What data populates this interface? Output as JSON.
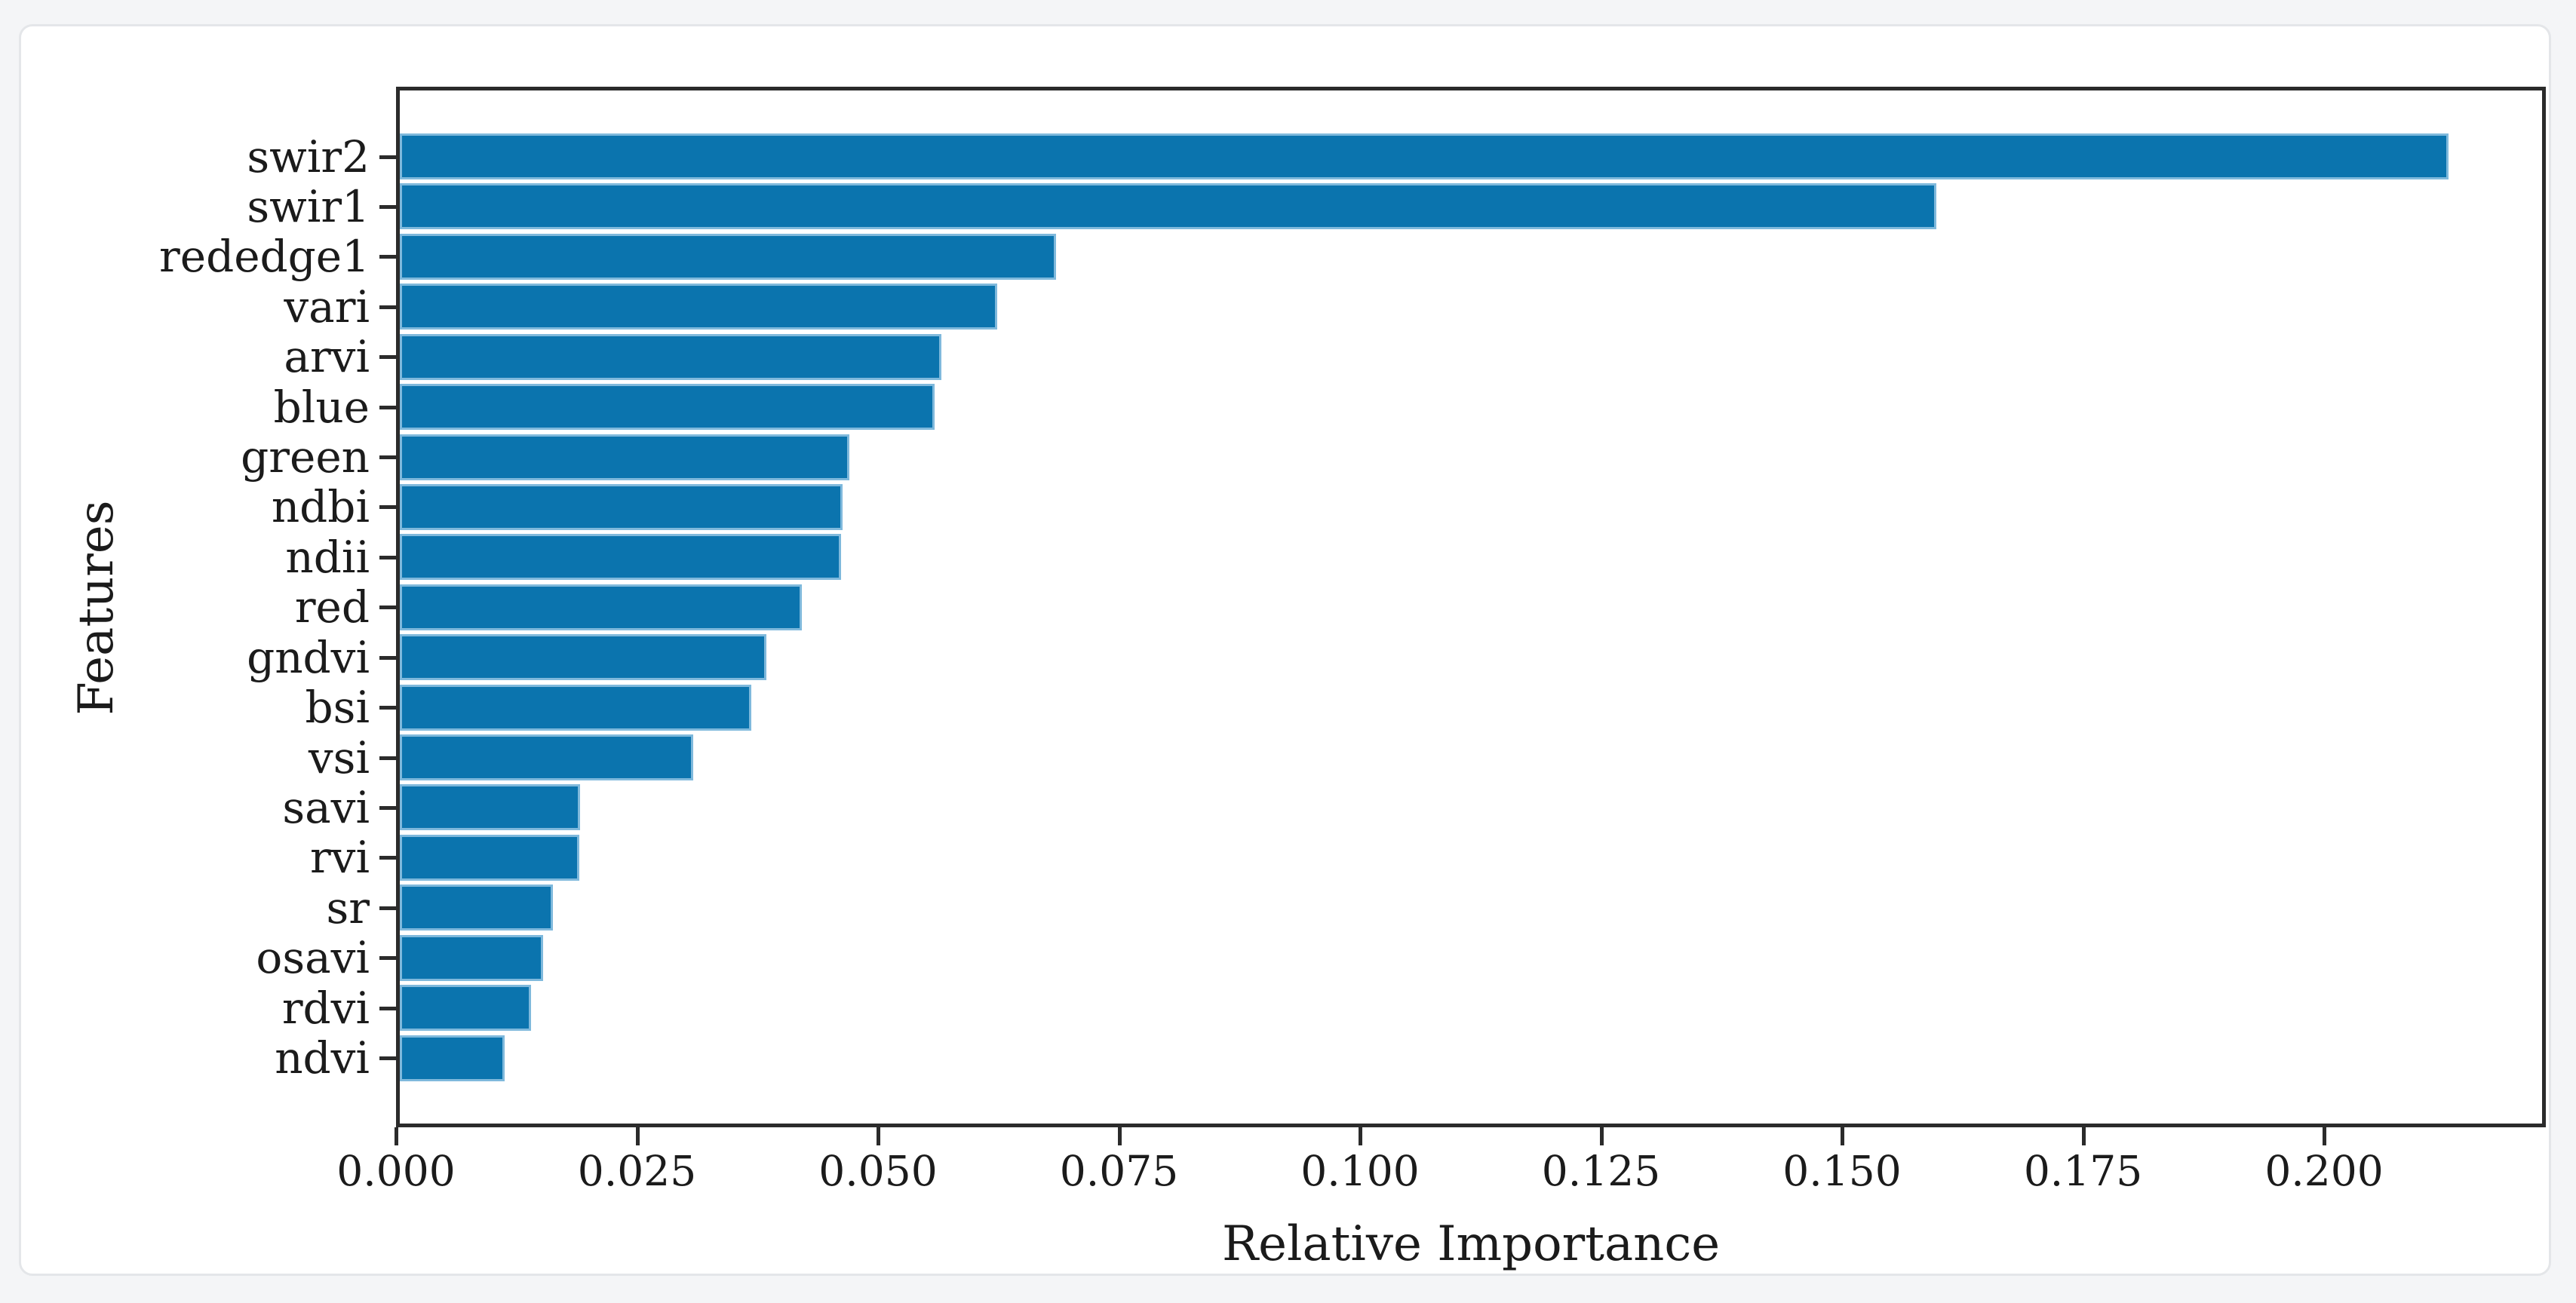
{
  "figure": {
    "page_background": "#f4f5f7",
    "card_background": "#ffffff",
    "card_border_color": "#e4e6e9"
  },
  "chart_data": {
    "type": "bar",
    "orientation": "horizontal",
    "title": "",
    "xlabel": "Relative Importance",
    "ylabel": "Features",
    "categories": [
      "swir2",
      "swir1",
      "rededge1",
      "vari",
      "arvi",
      "blue",
      "green",
      "ndbi",
      "ndii",
      "red",
      "gndvi",
      "bsi",
      "vsi",
      "savi",
      "rvi",
      "sr",
      "osavi",
      "rdvi",
      "ndvi"
    ],
    "values": [
      0.2125,
      0.1594,
      0.0681,
      0.062,
      0.0562,
      0.0555,
      0.0466,
      0.0459,
      0.0458,
      0.0417,
      0.038,
      0.0365,
      0.0304,
      0.0187,
      0.0186,
      0.0159,
      0.0149,
      0.0136,
      0.0109
    ],
    "xlim": [
      0,
      0.223
    ],
    "xticks": [
      0.0,
      0.025,
      0.05,
      0.075,
      0.1,
      0.125,
      0.15,
      0.175,
      0.2
    ],
    "xtick_labels": [
      "0.000",
      "0.025",
      "0.050",
      "0.075",
      "0.100",
      "0.125",
      "0.150",
      "0.175",
      "0.200"
    ],
    "bar_color": "#0b74ae",
    "bar_edge_color": "#7fb9dc",
    "spine_color": "#2b2b2b",
    "text_color": "#1b1b1b",
    "grid": false,
    "legend": null
  }
}
